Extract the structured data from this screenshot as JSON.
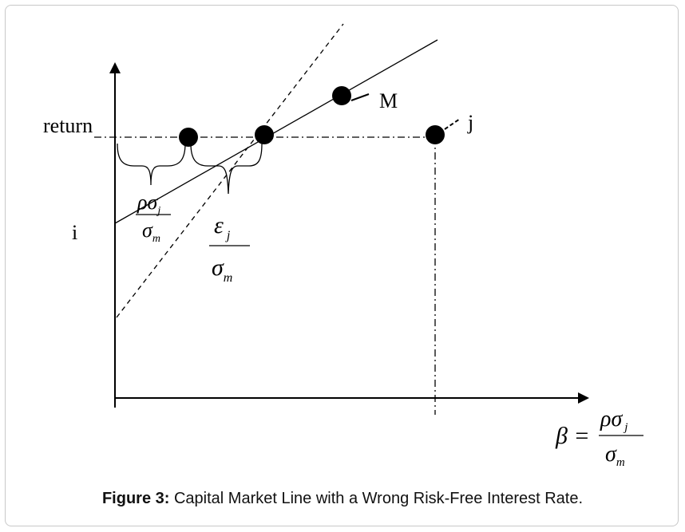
{
  "labels": {
    "return": "return",
    "i": "i",
    "M": "M",
    "j": "j"
  },
  "fraction_left": {
    "numerator": "ρσ",
    "numerator_sub": "j",
    "denominator": "σ",
    "denominator_sub": "m"
  },
  "fraction_mid": {
    "numerator": "ε",
    "numerator_sub": "j",
    "denominator": "σ",
    "denominator_sub": "m"
  },
  "beta_formula": {
    "lhs": "β =",
    "numerator": "ρσ",
    "numerator_sub": "j",
    "denominator": "σ",
    "denominator_sub": "m"
  },
  "caption": {
    "prefix": "Figure 3:",
    "text": " Capital Market Line with a Wrong Risk-Free Interest Rate."
  },
  "colors": {
    "ink": "#000000",
    "frame": "#c8c8c8"
  }
}
